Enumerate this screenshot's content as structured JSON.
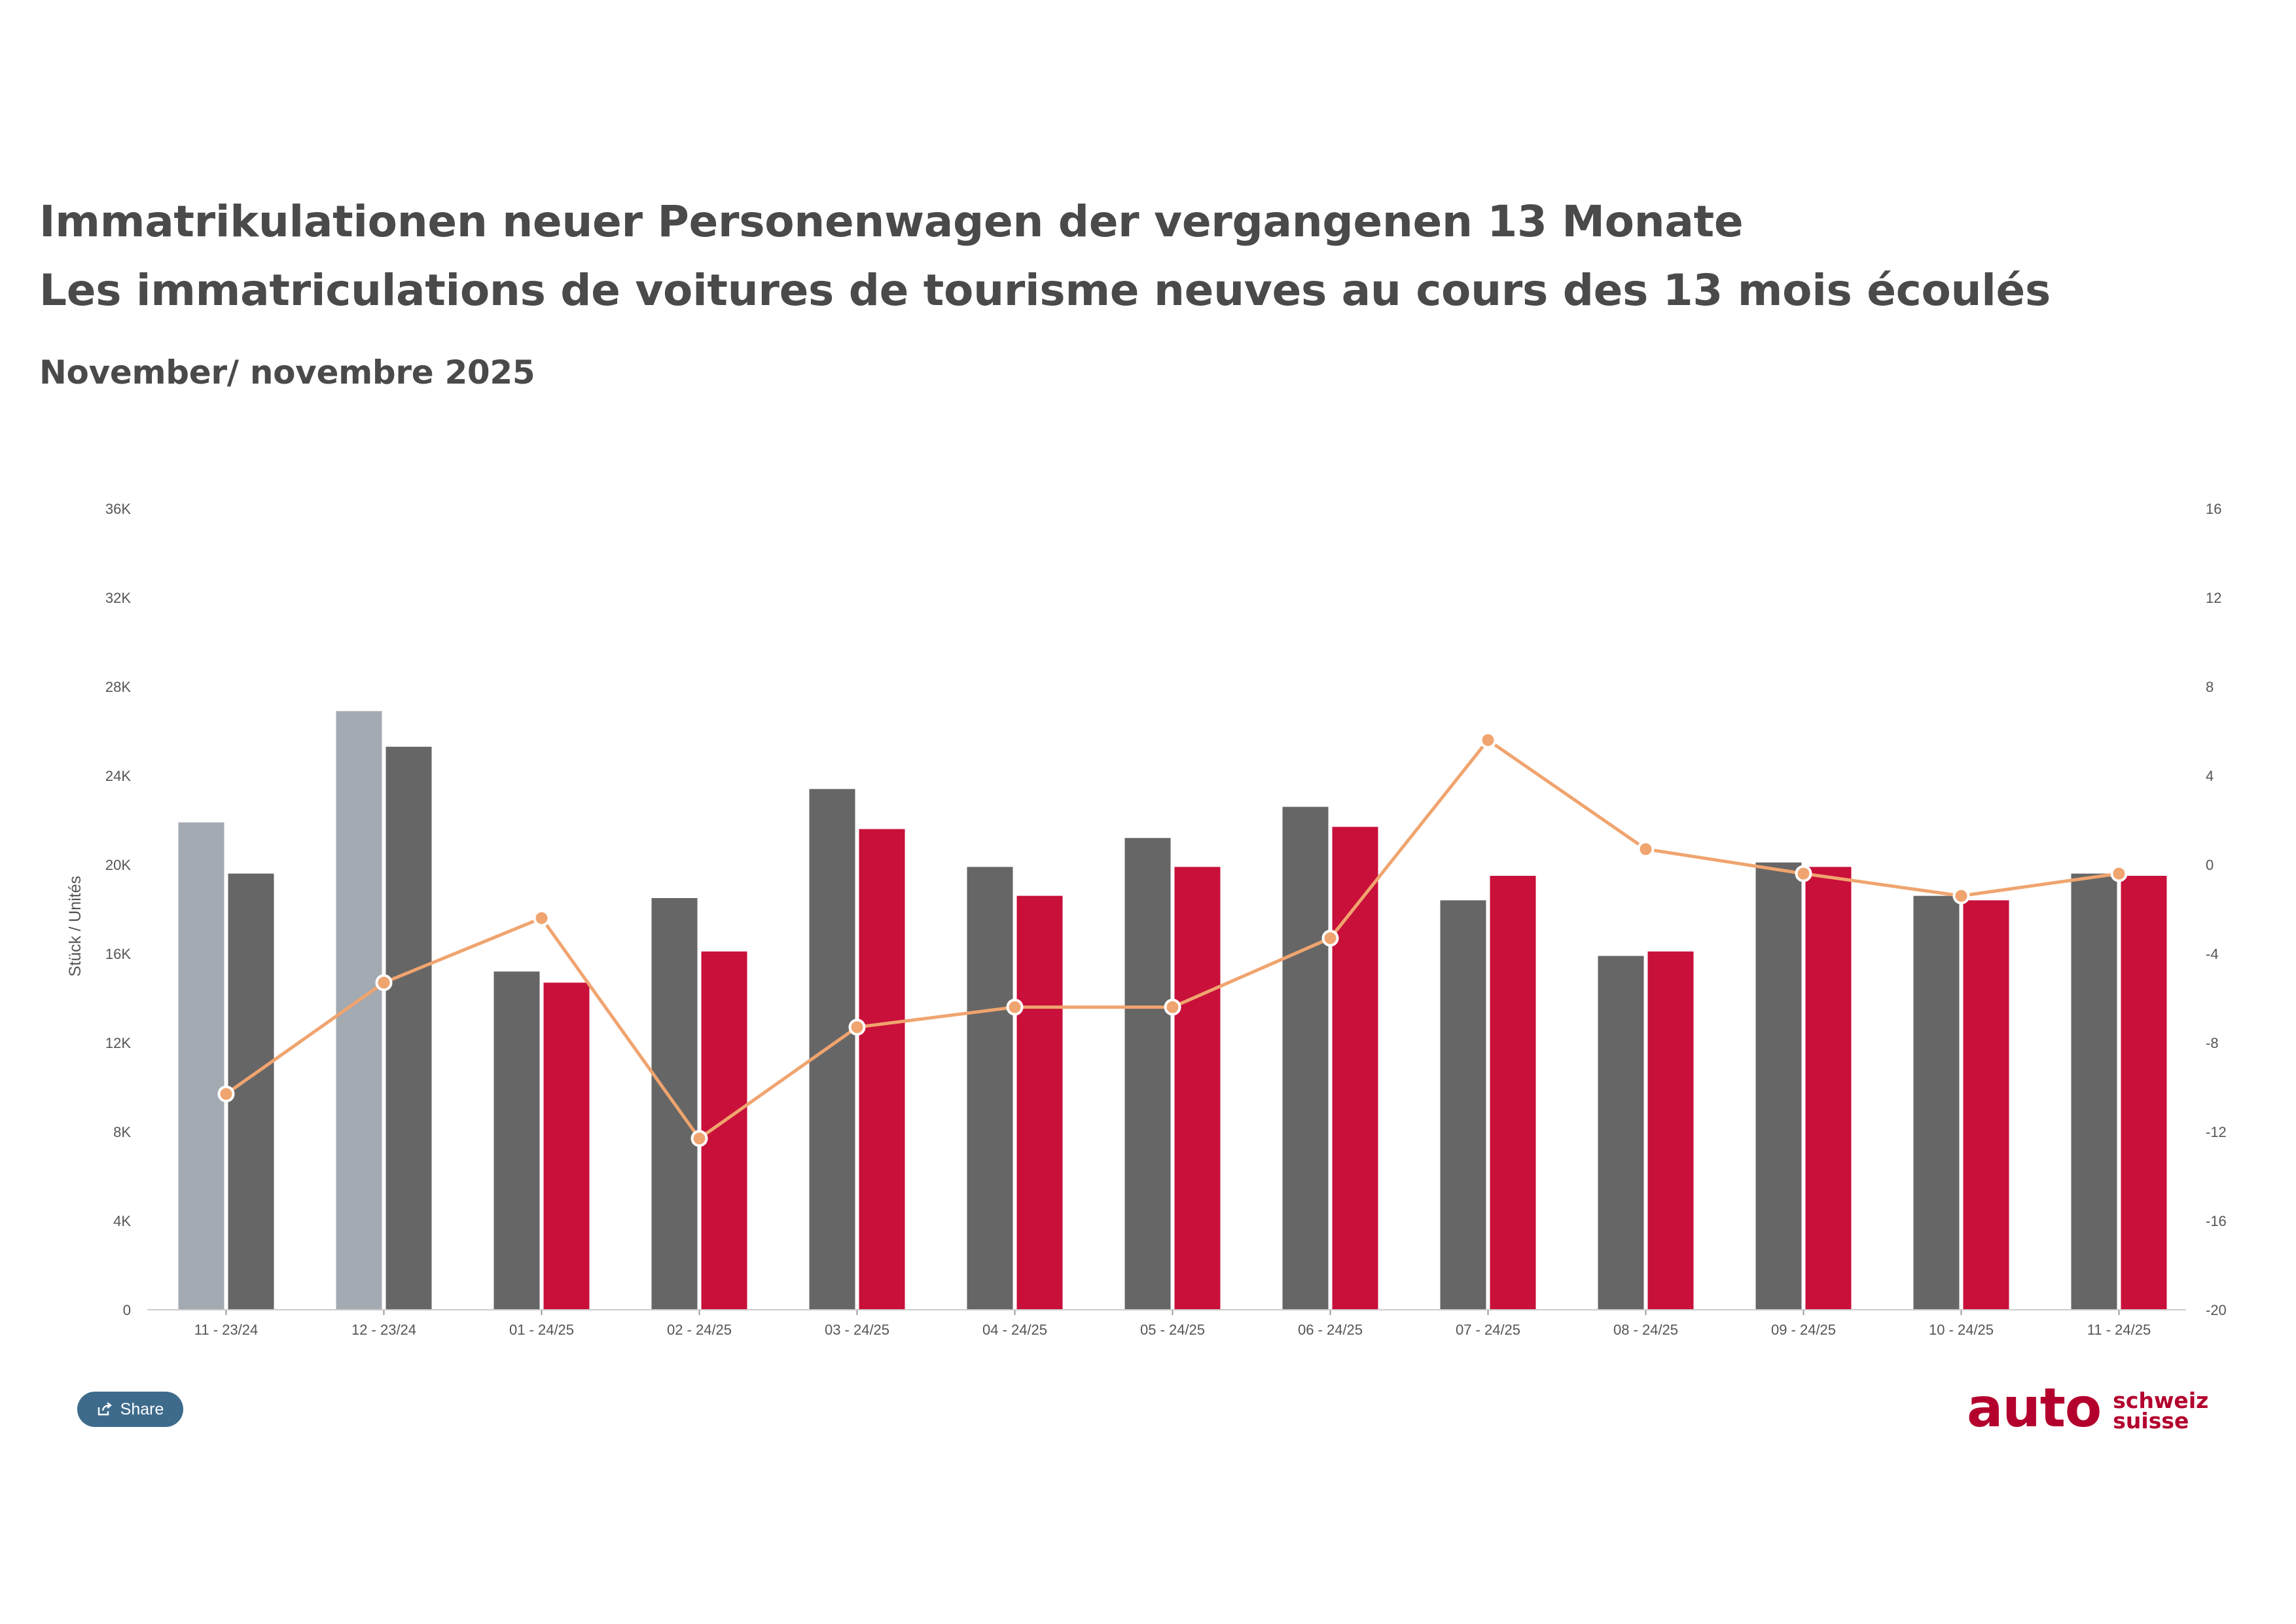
{
  "header": {
    "title_de": "Immatrikulationen neuer Personenwagen der vergangenen 13 Monate",
    "title_fr": "Les immatriculations de voitures de tourisme neuves au cours des 13 mois écoulés",
    "subtitle": "November/ novembre 2025"
  },
  "share": {
    "label": "Share",
    "icon": "share-icon"
  },
  "logo": {
    "main": "auto",
    "line1": "schweiz",
    "line2": "suisse",
    "color": "#b3002d"
  },
  "colors": {
    "prev_older": "#a3aab1",
    "prev": "#666666",
    "current": "#c8103a",
    "line": "#f0a46f",
    "axis_text": "#555555"
  },
  "chart_data": {
    "type": "bar",
    "ylabel": "Stück / Unités",
    "ylim": [
      0,
      36000
    ],
    "y_ticks": [
      "0",
      "4K",
      "8K",
      "12K",
      "16K",
      "20K",
      "24K",
      "28K",
      "32K",
      "36K"
    ],
    "y2lim": [
      -20,
      16
    ],
    "y2_ticks": [
      "-20",
      "-16",
      "-12",
      "-8",
      "-4",
      "0",
      "4",
      "8",
      "12",
      "16"
    ],
    "categories": [
      "11 - 23/24",
      "12 - 23/24",
      "01 - 24/25",
      "02 - 24/25",
      "03 - 24/25",
      "04 - 24/25",
      "05 - 24/25",
      "06 - 24/25",
      "07 - 24/25",
      "08 - 24/25",
      "09 - 24/25",
      "10 - 24/25",
      "11 - 24/25"
    ],
    "series": [
      {
        "kind": "bar",
        "color": "#a3aab1",
        "values": [
          21900,
          26900,
          null,
          null,
          null,
          null,
          null,
          null,
          null,
          null,
          null,
          null,
          null
        ]
      },
      {
        "kind": "bar",
        "color": "#666666",
        "values": [
          19600,
          25300,
          15200,
          18500,
          23400,
          19900,
          21200,
          22600,
          18400,
          15900,
          20100,
          18600,
          19600
        ]
      },
      {
        "kind": "bar",
        "color": "#c8103a",
        "values": [
          null,
          null,
          14700,
          16100,
          21600,
          18600,
          19900,
          21700,
          19500,
          16100,
          19900,
          18400,
          19500
        ]
      },
      {
        "kind": "line",
        "axis": "y2",
        "color": "#f0a46f",
        "values": [
          -10.3,
          -5.3,
          -2.4,
          -12.3,
          -7.3,
          -6.4,
          -6.4,
          -3.3,
          5.6,
          0.7,
          -0.4,
          -1.4,
          -0.4
        ]
      }
    ]
  }
}
